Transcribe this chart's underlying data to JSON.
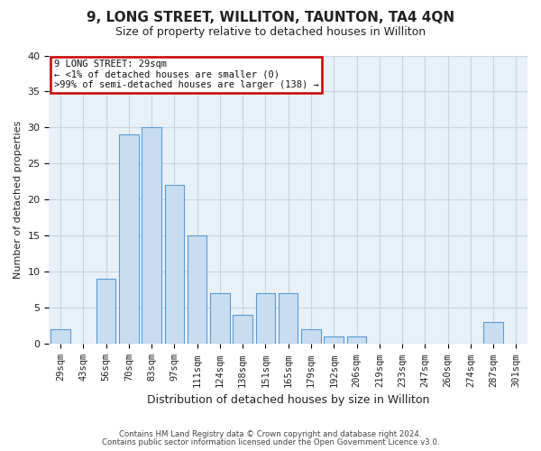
{
  "title": "9, LONG STREET, WILLITON, TAUNTON, TA4 4QN",
  "subtitle": "Size of property relative to detached houses in Williton",
  "xlabel": "Distribution of detached houses by size in Williton",
  "ylabel": "Number of detached properties",
  "bar_color": "#c8ddf0",
  "bar_edge_color": "#5b9bd5",
  "categories": [
    "29sqm",
    "43sqm",
    "56sqm",
    "70sqm",
    "83sqm",
    "97sqm",
    "111sqm",
    "124sqm",
    "138sqm",
    "151sqm",
    "165sqm",
    "179sqm",
    "192sqm",
    "206sqm",
    "219sqm",
    "233sqm",
    "247sqm",
    "260sqm",
    "274sqm",
    "287sqm",
    "301sqm"
  ],
  "values": [
    2,
    0,
    9,
    29,
    30,
    22,
    15,
    7,
    4,
    7,
    7,
    2,
    1,
    1,
    0,
    0,
    0,
    0,
    0,
    3,
    0
  ],
  "ylim": [
    0,
    40
  ],
  "yticks": [
    0,
    5,
    10,
    15,
    20,
    25,
    30,
    35,
    40
  ],
  "annotation_text": "9 LONG STREET: 29sqm\n← <1% of detached houses are smaller (0)\n>99% of semi-detached houses are larger (138) →",
  "annotation_box_facecolor": "#ffffff",
  "annotation_box_edgecolor": "#cc0000",
  "plot_bg_color": "#e8f0f8",
  "fig_bg_color": "#ffffff",
  "grid_color": "#c8d4e0",
  "footer_line1": "Contains HM Land Registry data © Crown copyright and database right 2024.",
  "footer_line2": "Contains public sector information licensed under the Open Government Licence v3.0.",
  "title_fontsize": 11,
  "subtitle_fontsize": 9,
  "tick_fontsize": 7.5,
  "ylabel_fontsize": 8,
  "xlabel_fontsize": 9
}
